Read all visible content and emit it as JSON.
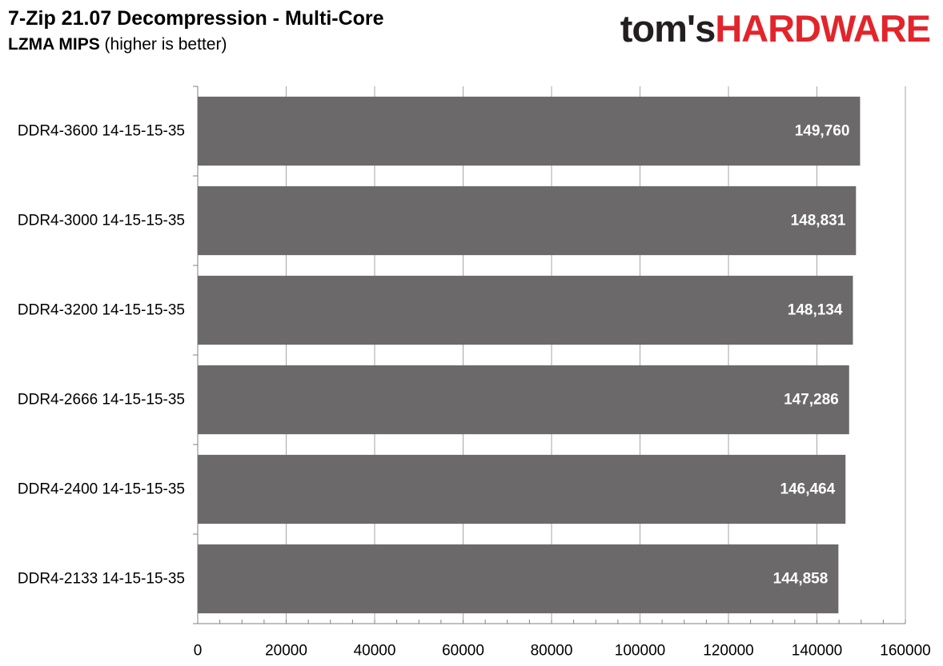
{
  "header": {
    "title": "7-Zip 21.07 Decompression - Multi-Core",
    "subtitle_bold": "LZMA MIPS",
    "subtitle_rest": " (higher is better)"
  },
  "logo": {
    "part1": "tom's",
    "part2": "HARDWARE"
  },
  "colors": {
    "bar": "#6b6969",
    "grid": "#a6a6a6",
    "axis": "#808080",
    "logo_red": "#e2252b"
  },
  "chart_data": {
    "type": "bar",
    "orientation": "horizontal",
    "title": "7-Zip 21.07 Decompression - Multi-Core",
    "subtitle": "LZMA MIPS (higher is better)",
    "categories": [
      "DDR4-3600 14-15-15-35",
      "DDR4-3000 14-15-15-35",
      "DDR4-3200 14-15-15-35",
      "DDR4-2666 14-15-15-35",
      "DDR4-2400 14-15-15-35",
      "DDR4-2133 14-15-15-35"
    ],
    "values": [
      149760,
      148831,
      148134,
      147286,
      146464,
      144858
    ],
    "value_labels": [
      "149,760",
      "148,831",
      "148,134",
      "147,286",
      "146,464",
      "144,858"
    ],
    "xlim": [
      0,
      160000
    ],
    "xticks": [
      0,
      20000,
      40000,
      60000,
      80000,
      100000,
      120000,
      140000,
      160000
    ],
    "xtick_labels": [
      "0",
      "20000",
      "40000",
      "60000",
      "80000",
      "100000",
      "120000",
      "140000",
      "160000"
    ],
    "grid": true,
    "legend": "none"
  }
}
